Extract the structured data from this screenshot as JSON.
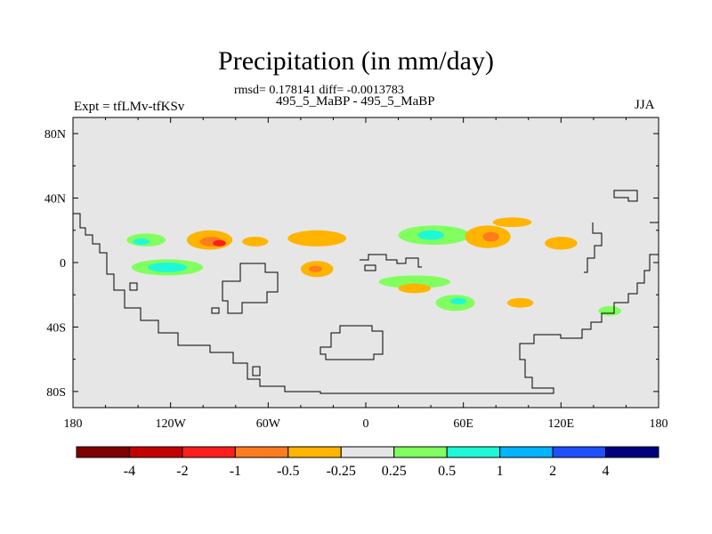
{
  "chart_data": {
    "type": "heatmap",
    "title": "Precipitation (in mm/day)",
    "subtitle": "rmsd= 0.178141 diff= -0.0013783",
    "left_label": "Expt = tfLMv-tfKSv",
    "center_label": "495_5_MaBP - 495_5_MaBP",
    "right_label": "JJA",
    "x_ticks": [
      "180",
      "120W",
      "60W",
      "0",
      "60E",
      "120E",
      "180"
    ],
    "x_tick_values": [
      -180,
      -120,
      -60,
      0,
      60,
      120,
      180
    ],
    "y_ticks": [
      "80N",
      "40N",
      "0",
      "40S",
      "80S"
    ],
    "y_tick_values": [
      80,
      40,
      0,
      -40,
      -80
    ],
    "xlim": [
      -180,
      180
    ],
    "ylim": [
      -90,
      90
    ],
    "colorbar": {
      "colors": [
        "#800000",
        "#c30000",
        "#ff1e1e",
        "#ff7c1e",
        "#ffb400",
        "#e6e6e6",
        "#80ff5f",
        "#1ef8d8",
        "#00b4ff",
        "#1e50ff",
        "#000080"
      ],
      "labels": [
        "-4",
        "-2",
        "-1",
        "-0.5",
        "-0.25",
        "0.25",
        "0.5",
        "1",
        "2",
        "4"
      ]
    },
    "anomalies": [
      {
        "lon": -96,
        "lat": 14,
        "rlon": 14,
        "rlat": 6,
        "level": -0.25
      },
      {
        "lon": -95,
        "lat": 13,
        "rlon": 7,
        "rlat": 3,
        "level": -0.5
      },
      {
        "lon": -90,
        "lat": 12,
        "rlon": 4,
        "rlat": 2,
        "level": -1
      },
      {
        "lon": -68,
        "lat": 13,
        "rlon": 8,
        "rlat": 3,
        "level": -0.25
      },
      {
        "lon": -135,
        "lat": 14,
        "rlon": 12,
        "rlat": 4,
        "level": 0.25
      },
      {
        "lon": -138,
        "lat": 13,
        "rlon": 5,
        "rlat": 2,
        "level": 0.5
      },
      {
        "lon": -122,
        "lat": -3,
        "rlon": 22,
        "rlat": 5,
        "level": 0.25
      },
      {
        "lon": -122,
        "lat": -3,
        "rlon": 12,
        "rlat": 3,
        "level": 0.5
      },
      {
        "lon": -30,
        "lat": 15,
        "rlon": 18,
        "rlat": 5,
        "level": -0.25
      },
      {
        "lon": -30,
        "lat": -4,
        "rlon": 10,
        "rlat": 5,
        "level": -0.25
      },
      {
        "lon": -31,
        "lat": -4,
        "rlon": 4,
        "rlat": 2,
        "level": -0.5
      },
      {
        "lon": 42,
        "lat": 17,
        "rlon": 22,
        "rlat": 6,
        "level": 0.25
      },
      {
        "lon": 40,
        "lat": 17,
        "rlon": 8,
        "rlat": 3,
        "level": 0.5
      },
      {
        "lon": 75,
        "lat": 16,
        "rlon": 14,
        "rlat": 7,
        "level": -0.25
      },
      {
        "lon": 77,
        "lat": 16,
        "rlon": 5,
        "rlat": 3,
        "level": -0.5
      },
      {
        "lon": 90,
        "lat": 25,
        "rlon": 12,
        "rlat": 3,
        "level": -0.25
      },
      {
        "lon": 120,
        "lat": 12,
        "rlon": 10,
        "rlat": 4,
        "level": -0.25
      },
      {
        "lon": 30,
        "lat": -12,
        "rlon": 22,
        "rlat": 4,
        "level": 0.25
      },
      {
        "lon": 55,
        "lat": -25,
        "rlon": 12,
        "rlat": 5,
        "level": 0.25
      },
      {
        "lon": 57,
        "lat": -24,
        "rlon": 5,
        "rlat": 2,
        "level": 0.5
      },
      {
        "lon": 30,
        "lat": -16,
        "rlon": 10,
        "rlat": 3,
        "level": -0.25
      },
      {
        "lon": 95,
        "lat": -25,
        "rlon": 8,
        "rlat": 3,
        "level": -0.25
      },
      {
        "lon": 150,
        "lat": -30,
        "rlon": 7,
        "rlat": 3,
        "level": 0.25
      }
    ]
  }
}
